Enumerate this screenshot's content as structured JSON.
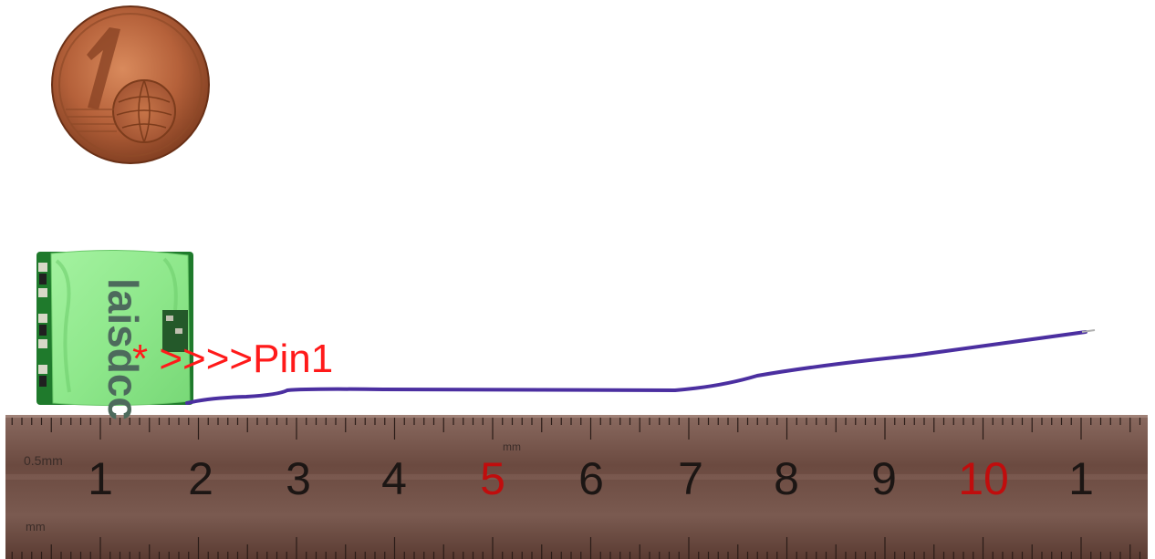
{
  "photo": {
    "subject": "Photo of a small green decoder board with a purple wire, a 1 euro cent coin for scale, and a metal ruler"
  },
  "coin": {
    "value": "1",
    "unit": "EURO CENT"
  },
  "decoder": {
    "brand": "laisdcc"
  },
  "annotation": {
    "text": "* >>>>Pin1",
    "color": "#ff1a1a"
  },
  "ruler": {
    "labels": [
      "0.5mm",
      "mm",
      "mm"
    ],
    "numbers": [
      "1",
      "2",
      "3",
      "4",
      "5",
      "6",
      "7",
      "8",
      "9",
      "10",
      "1"
    ],
    "red_numbers": [
      "5",
      "10"
    ]
  },
  "colors": {
    "coin": "#b5613a",
    "board": "#8fe88c",
    "pcb": "#1f7a2c",
    "wire": "#4b2fa0",
    "ruler": "#6b4a40"
  }
}
